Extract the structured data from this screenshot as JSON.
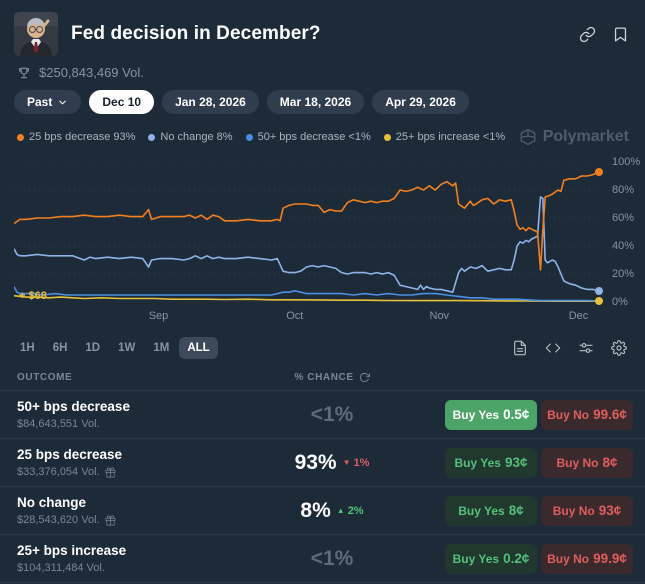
{
  "header": {
    "title": "Fed decision in December?",
    "volume": "$250,843,469 Vol."
  },
  "date_tabs": {
    "past": "Past",
    "selected": "Dec 10",
    "items": [
      {
        "label": "Dec 10"
      },
      {
        "label": "Jan 28, 2026"
      },
      {
        "label": "Mar 18, 2026"
      },
      {
        "label": "Apr 29, 2026"
      }
    ]
  },
  "legend": [
    {
      "text": "25 bps decrease 93%",
      "color": "#f2801e"
    },
    {
      "text": "No change 8%",
      "color": "#8fb3e8"
    },
    {
      "text": "50+ bps decrease <1%",
      "color": "#4a8fe2"
    },
    {
      "text": "25+ bps increase <1%",
      "color": "#e6c03c"
    }
  ],
  "watermark": "Polymarket",
  "chart_data": {
    "type": "line",
    "title": "Fed decision in December? — outcome probabilities over time",
    "ylabel": "% chance",
    "ylim": [
      0,
      100
    ],
    "grid": "horizontal dotted",
    "legend_position": "top-left",
    "annotation": "+ $68",
    "y_ticks": [
      "100%",
      "80%",
      "60%",
      "40%",
      "20%",
      "0%"
    ],
    "x_ticks": [
      {
        "label": "Sep",
        "pos": 24.7
      },
      {
        "label": "Oct",
        "pos": 48.0
      },
      {
        "label": "Nov",
        "pos": 72.7
      },
      {
        "label": "Dec",
        "pos": 96.5
      }
    ],
    "series": [
      {
        "name": "25 bps decrease",
        "current": "93%",
        "color": "#f2801e",
        "end_dot": true,
        "points": [
          [
            0,
            56
          ],
          [
            1,
            59
          ],
          [
            2,
            59
          ],
          [
            4,
            60
          ],
          [
            6,
            60
          ],
          [
            8,
            61
          ],
          [
            10,
            61
          ],
          [
            12,
            62
          ],
          [
            14,
            61
          ],
          [
            16,
            61
          ],
          [
            18,
            62
          ],
          [
            20,
            61
          ],
          [
            22,
            61
          ],
          [
            23,
            66
          ],
          [
            23.5,
            59
          ],
          [
            25,
            61
          ],
          [
            27,
            61
          ],
          [
            29,
            61
          ],
          [
            30,
            62
          ],
          [
            31,
            60
          ],
          [
            32,
            62
          ],
          [
            33,
            59
          ],
          [
            34,
            62
          ],
          [
            35,
            61
          ],
          [
            36,
            58
          ],
          [
            38,
            58
          ],
          [
            40,
            59
          ],
          [
            42,
            58
          ],
          [
            44,
            58
          ],
          [
            45,
            59
          ],
          [
            45.5,
            58
          ],
          [
            46,
            67
          ],
          [
            47,
            69
          ],
          [
            48,
            70
          ],
          [
            50,
            70
          ],
          [
            51,
            69
          ],
          [
            52,
            69
          ],
          [
            53,
            64
          ],
          [
            54,
            66
          ],
          [
            55,
            65
          ],
          [
            56,
            65
          ],
          [
            57,
            71
          ],
          [
            58,
            73
          ],
          [
            59,
            72
          ],
          [
            60,
            71
          ],
          [
            61,
            72
          ],
          [
            62,
            71
          ],
          [
            63,
            72
          ],
          [
            64,
            72
          ],
          [
            65,
            74
          ],
          [
            66,
            80
          ],
          [
            67,
            79
          ],
          [
            68,
            80
          ],
          [
            69,
            82
          ],
          [
            70,
            80
          ],
          [
            71,
            83
          ],
          [
            72,
            80
          ],
          [
            73,
            84
          ],
          [
            74,
            86
          ],
          [
            75,
            83
          ],
          [
            75.5,
            85
          ],
          [
            76,
            70
          ],
          [
            77,
            67
          ],
          [
            78,
            72
          ],
          [
            78.5,
            69
          ],
          [
            79,
            70
          ],
          [
            80,
            73
          ],
          [
            81,
            74
          ],
          [
            82,
            70
          ],
          [
            83,
            73
          ],
          [
            84,
            72
          ],
          [
            85,
            73
          ],
          [
            85.5,
            65
          ],
          [
            86,
            55
          ],
          [
            86.5,
            52
          ],
          [
            87,
            53
          ],
          [
            87.5,
            51
          ],
          [
            88,
            53
          ],
          [
            88.5,
            52
          ],
          [
            89,
            51
          ],
          [
            89.5,
            50
          ],
          [
            90,
            23
          ],
          [
            90.3,
            45
          ],
          [
            90.8,
            75
          ],
          [
            91.5,
            76
          ],
          [
            92,
            77
          ],
          [
            93,
            80
          ],
          [
            93.5,
            79
          ],
          [
            94,
            87
          ],
          [
            95,
            88
          ],
          [
            96,
            88
          ],
          [
            97,
            90
          ],
          [
            98,
            90
          ],
          [
            99,
            91
          ],
          [
            100,
            93
          ]
        ]
      },
      {
        "name": "No change",
        "current": "8%",
        "color": "#8fb3e8",
        "end_dot": true,
        "points": [
          [
            0,
            38
          ],
          [
            0.5,
            34
          ],
          [
            1,
            33
          ],
          [
            2,
            33
          ],
          [
            4,
            34
          ],
          [
            6,
            33
          ],
          [
            8,
            33
          ],
          [
            10,
            33
          ],
          [
            12,
            30
          ],
          [
            13,
            32
          ],
          [
            14,
            31
          ],
          [
            16,
            32
          ],
          [
            18,
            31
          ],
          [
            20,
            32
          ],
          [
            22,
            31
          ],
          [
            23,
            25
          ],
          [
            23.5,
            30
          ],
          [
            25,
            31
          ],
          [
            27,
            31
          ],
          [
            29,
            30
          ],
          [
            30,
            31
          ],
          [
            31,
            33
          ],
          [
            32,
            31
          ],
          [
            33,
            33
          ],
          [
            34,
            31
          ],
          [
            35,
            32
          ],
          [
            36,
            31
          ],
          [
            38,
            31
          ],
          [
            40,
            32
          ],
          [
            42,
            31
          ],
          [
            44,
            30
          ],
          [
            45,
            31
          ],
          [
            46,
            22
          ],
          [
            47,
            21
          ],
          [
            48,
            21
          ],
          [
            49,
            22
          ],
          [
            50,
            25
          ],
          [
            51,
            26
          ],
          [
            52,
            25
          ],
          [
            53,
            26
          ],
          [
            54,
            25
          ],
          [
            55,
            24
          ],
          [
            56,
            21
          ],
          [
            57,
            20
          ],
          [
            58,
            21
          ],
          [
            60,
            21
          ],
          [
            61,
            20
          ],
          [
            62,
            21
          ],
          [
            63,
            20
          ],
          [
            64,
            21
          ],
          [
            65,
            19
          ],
          [
            66,
            12
          ],
          [
            67,
            11
          ],
          [
            68,
            10
          ],
          [
            69,
            9
          ],
          [
            69.5,
            12
          ],
          [
            70,
            9
          ],
          [
            70.5,
            11
          ],
          [
            71,
            10
          ],
          [
            72,
            9
          ],
          [
            73,
            9
          ],
          [
            74,
            8
          ],
          [
            75,
            7
          ],
          [
            76,
            21
          ],
          [
            76.5,
            24
          ],
          [
            77,
            22
          ],
          [
            78,
            25
          ],
          [
            79,
            24
          ],
          [
            80,
            26
          ],
          [
            81,
            22
          ],
          [
            82,
            23
          ],
          [
            83,
            24
          ],
          [
            84,
            23
          ],
          [
            85,
            23
          ],
          [
            85.5,
            30
          ],
          [
            86,
            40
          ],
          [
            86.5,
            43
          ],
          [
            87,
            42
          ],
          [
            87.5,
            44
          ],
          [
            88,
            43
          ],
          [
            88.5,
            45
          ],
          [
            89,
            46
          ],
          [
            89.5,
            47
          ],
          [
            90,
            75
          ],
          [
            90.4,
            74
          ],
          [
            90.8,
            30
          ],
          [
            91.2,
            28
          ],
          [
            92,
            30
          ],
          [
            92.5,
            29
          ],
          [
            93,
            25
          ],
          [
            94,
            15
          ],
          [
            95,
            13
          ],
          [
            96,
            12
          ],
          [
            97,
            10
          ],
          [
            98,
            9
          ],
          [
            99,
            9
          ],
          [
            100,
            8
          ]
        ]
      },
      {
        "name": "50+ bps decrease",
        "current": "<1%",
        "color": "#4a8fe2",
        "end_dot": false,
        "points": [
          [
            0,
            11
          ],
          [
            0.5,
            7
          ],
          [
            1,
            6
          ],
          [
            3,
            6
          ],
          [
            5,
            5
          ],
          [
            7,
            6
          ],
          [
            9,
            5
          ],
          [
            12,
            5
          ],
          [
            15,
            5
          ],
          [
            18,
            5
          ],
          [
            21,
            5
          ],
          [
            24,
            5
          ],
          [
            27,
            5
          ],
          [
            30,
            5
          ],
          [
            33,
            5
          ],
          [
            36,
            5
          ],
          [
            39,
            5
          ],
          [
            42,
            5
          ],
          [
            44,
            5
          ],
          [
            46,
            7
          ],
          [
            47,
            7
          ],
          [
            48,
            8
          ],
          [
            49,
            7
          ],
          [
            50,
            6
          ],
          [
            52,
            6
          ],
          [
            54,
            6
          ],
          [
            56,
            6
          ],
          [
            58,
            5
          ],
          [
            60,
            6
          ],
          [
            62,
            5
          ],
          [
            64,
            6
          ],
          [
            66,
            5
          ],
          [
            68,
            5
          ],
          [
            70,
            6
          ],
          [
            72,
            6
          ],
          [
            74,
            5
          ],
          [
            76,
            4
          ],
          [
            78,
            3
          ],
          [
            80,
            3
          ],
          [
            82,
            2
          ],
          [
            84,
            2
          ],
          [
            86,
            2
          ],
          [
            88,
            1.5
          ],
          [
            90,
            1
          ],
          [
            92,
            1
          ],
          [
            94,
            1
          ],
          [
            96,
            1
          ],
          [
            98,
            1
          ],
          [
            100,
            0.7
          ]
        ]
      },
      {
        "name": "25+ bps increase",
        "current": "<1%",
        "color": "#e6c03c",
        "end_dot": true,
        "points": [
          [
            0,
            4.5
          ],
          [
            2,
            3.5
          ],
          [
            4,
            3.5
          ],
          [
            6,
            3
          ],
          [
            8,
            3.5
          ],
          [
            10,
            3
          ],
          [
            12,
            2.5
          ],
          [
            15,
            3
          ],
          [
            18,
            2.5
          ],
          [
            21,
            2.5
          ],
          [
            24,
            2.5
          ],
          [
            27,
            2
          ],
          [
            30,
            2
          ],
          [
            33,
            2
          ],
          [
            36,
            1.8
          ],
          [
            40,
            2
          ],
          [
            44,
            1.6
          ],
          [
            48,
            1.6
          ],
          [
            52,
            1.5
          ],
          [
            56,
            1.3
          ],
          [
            60,
            1.3
          ],
          [
            64,
            1.1
          ],
          [
            68,
            1
          ],
          [
            72,
            1
          ],
          [
            76,
            1
          ],
          [
            80,
            0.9
          ],
          [
            84,
            0.8
          ],
          [
            88,
            0.7
          ],
          [
            92,
            0.6
          ],
          [
            96,
            0.5
          ],
          [
            100,
            0.4
          ]
        ]
      }
    ]
  },
  "timeframes": {
    "options": [
      "1H",
      "6H",
      "1D",
      "1W",
      "1M",
      "ALL"
    ],
    "active": "ALL"
  },
  "table": {
    "outcome_header": "OUTCOME",
    "chance_header": "% CHANCE",
    "rows": [
      {
        "outcome": "50+ bps decrease",
        "volume": "$84,643,551 Vol.",
        "gift": false,
        "chance": "<1%",
        "change": null,
        "change_dir": null,
        "yes": {
          "label": "Buy Yes",
          "price": "0.5¢"
        },
        "no": {
          "label": "Buy No",
          "price": "99.6¢"
        }
      },
      {
        "outcome": "25 bps decrease",
        "volume": "$33,376,054 Vol.",
        "gift": true,
        "chance": "93%",
        "change": "1%",
        "change_dir": "down",
        "yes": {
          "label": "Buy Yes",
          "price": "93¢"
        },
        "no": {
          "label": "Buy No",
          "price": "8¢"
        }
      },
      {
        "outcome": "No change",
        "volume": "$28,543,620 Vol.",
        "gift": true,
        "chance": "8%",
        "change": "2%",
        "change_dir": "up",
        "yes": {
          "label": "Buy Yes",
          "price": "8¢"
        },
        "no": {
          "label": "Buy No",
          "price": "93¢"
        }
      },
      {
        "outcome": "25+ bps increase",
        "volume": "$104,311,484 Vol.",
        "gift": false,
        "chance": "<1%",
        "change": null,
        "change_dir": null,
        "yes": {
          "label": "Buy Yes",
          "price": "0.2¢"
        },
        "no": {
          "label": "Buy No",
          "price": "99.9¢"
        }
      }
    ]
  }
}
